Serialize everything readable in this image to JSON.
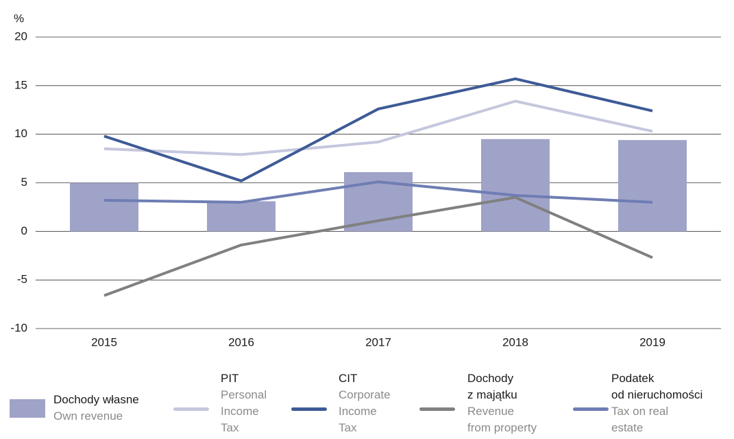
{
  "chart_data": {
    "type": "combo",
    "y_label": "%",
    "categories": [
      "2015",
      "2016",
      "2017",
      "2018",
      "2019"
    ],
    "ylim": [
      -10,
      20
    ],
    "yticks": [
      -10,
      -5,
      0,
      5,
      10,
      15,
      20
    ],
    "grid": true,
    "series": [
      {
        "name": "Dochody własne",
        "description": "Own revenue",
        "type": "bar",
        "color": "#a0a3c8",
        "values": [
          5.0,
          3.1,
          6.1,
          9.5,
          9.4
        ]
      },
      {
        "name": "PIT",
        "description": "Personal\nIncome\nTax",
        "type": "line",
        "color": "#c5c7de",
        "values": [
          8.5,
          7.9,
          9.2,
          13.4,
          10.3
        ]
      },
      {
        "name": "CIT",
        "description": "Corporate\nIncome\nTax",
        "type": "line",
        "color": "#3e5a96",
        "values": [
          9.8,
          5.2,
          12.6,
          15.7,
          12.4
        ]
      },
      {
        "name": "Dochody\nz majątku",
        "description": "Revenue\nfrom property",
        "type": "line",
        "color": "#808080",
        "values": [
          -6.6,
          -1.4,
          1.1,
          3.5,
          -2.7
        ]
      },
      {
        "name": "Podatek\nod nieruchomości",
        "description": "Tax on real\nestate",
        "type": "line",
        "color": "#6e7db3",
        "values": [
          3.2,
          3.0,
          5.1,
          3.7,
          3.0
        ]
      }
    ]
  }
}
